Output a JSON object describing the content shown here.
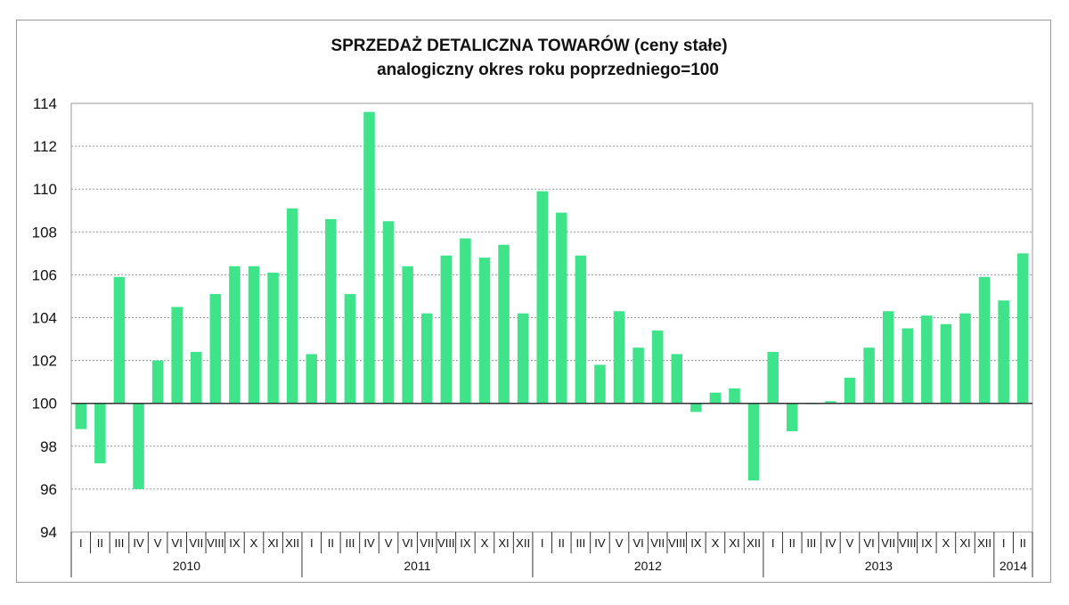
{
  "chart_data": {
    "type": "bar",
    "title": "SPRZEDAŻ DETALICZNA TOWARÓW  (ceny stałe)",
    "subtitle": "analogiczny okres roku poprzedniego=100",
    "baseline": 100,
    "ylim": [
      94,
      114
    ],
    "yticks": [
      94,
      96,
      98,
      100,
      102,
      104,
      106,
      108,
      110,
      112,
      114
    ],
    "grid": true,
    "colors": {
      "bar": "#3ee38a",
      "grid": "#9a9a9a",
      "axis": "#333333"
    },
    "categories": [
      "I",
      "II",
      "III",
      "IV",
      "V",
      "VI",
      "VII",
      "VIII",
      "IX",
      "X",
      "XI",
      "XII",
      "I",
      "II",
      "III",
      "IV",
      "V",
      "VI",
      "VII",
      "VIII",
      "IX",
      "X",
      "XI",
      "XII",
      "I",
      "II",
      "III",
      "IV",
      "V",
      "VI",
      "VII",
      "VIII",
      "IX",
      "X",
      "XI",
      "XII",
      "I",
      "II",
      "III",
      "IV",
      "V",
      "VI",
      "VII",
      "VIII",
      "IX",
      "X",
      "XI",
      "XII",
      "I",
      "II"
    ],
    "years": [
      {
        "label": "2010",
        "months": 12
      },
      {
        "label": "2011",
        "months": 12
      },
      {
        "label": "2012",
        "months": 12
      },
      {
        "label": "2013",
        "months": 12
      },
      {
        "label": "2014",
        "months": 2
      }
    ],
    "values": [
      98.8,
      97.2,
      105.9,
      96.0,
      102.0,
      104.5,
      102.4,
      105.1,
      106.4,
      106.4,
      106.1,
      109.1,
      102.3,
      108.6,
      105.1,
      113.6,
      108.5,
      106.4,
      104.2,
      106.9,
      107.7,
      106.8,
      107.4,
      104.2,
      109.9,
      108.9,
      106.9,
      101.8,
      104.3,
      102.6,
      103.4,
      102.3,
      99.6,
      100.5,
      100.7,
      96.4,
      102.4,
      98.7,
      100.0,
      100.1,
      101.2,
      102.6,
      104.3,
      103.5,
      104.1,
      103.7,
      104.2,
      105.9,
      104.8,
      107.0
    ]
  }
}
